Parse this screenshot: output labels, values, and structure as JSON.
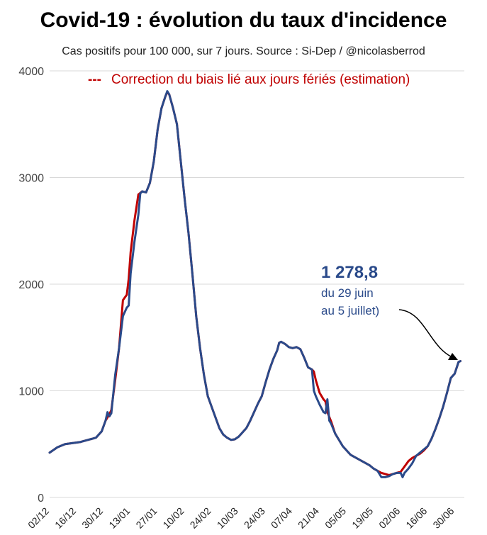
{
  "chart_data": {
    "type": "line",
    "title": "Covid-19 : évolution du taux d'incidence",
    "subtitle": "Cas positifs pour 100 000, sur 7 jours. Source : Si-Dep  / @nicolasberrod",
    "ylim": [
      0,
      4000
    ],
    "yticks": [
      0,
      1000,
      2000,
      3000,
      4000
    ],
    "xticks": [
      "02/12",
      "16/12",
      "30/12",
      "13/01",
      "27/01",
      "10/02",
      "24/02",
      "10/03",
      "24/03",
      "07/04",
      "21/04",
      "05/05",
      "19/05",
      "02/06",
      "16/06",
      "30/06"
    ],
    "x_start": "02/12",
    "x_end": "05/07",
    "legend": [
      {
        "marker": "---",
        "label": "Correction du biais lié aux jours fériés (estimation)",
        "color": "#c00000"
      }
    ],
    "annotation": {
      "value": "1 278,8",
      "line1": "du 29 juin",
      "line2": "au 5 juillet)"
    },
    "series": [
      {
        "role": "corrected",
        "color": "#c00000",
        "points": [
          [
            0,
            420
          ],
          [
            4,
            470
          ],
          [
            8,
            500
          ],
          [
            12,
            510
          ],
          [
            16,
            520
          ],
          [
            20,
            540
          ],
          [
            24,
            560
          ],
          [
            27,
            620
          ],
          [
            29,
            720
          ],
          [
            31,
            780
          ],
          [
            32,
            820
          ],
          [
            34,
            1100
          ],
          [
            36,
            1400
          ],
          [
            38,
            1850
          ],
          [
            40,
            1900
          ],
          [
            41,
            2050
          ],
          [
            42,
            2300
          ],
          [
            44,
            2600
          ],
          [
            46,
            2840
          ],
          [
            48,
            2870
          ],
          [
            50,
            2860
          ],
          [
            52,
            2950
          ],
          [
            54,
            3150
          ],
          [
            56,
            3450
          ],
          [
            58,
            3650
          ],
          [
            60,
            3760
          ],
          [
            61,
            3800
          ],
          [
            62,
            3780
          ],
          [
            64,
            3650
          ],
          [
            66,
            3500
          ],
          [
            68,
            3150
          ],
          [
            70,
            2800
          ],
          [
            72,
            2480
          ],
          [
            74,
            2100
          ],
          [
            76,
            1700
          ],
          [
            78,
            1400
          ],
          [
            80,
            1150
          ],
          [
            82,
            950
          ],
          [
            84,
            850
          ],
          [
            86,
            750
          ],
          [
            88,
            650
          ],
          [
            90,
            590
          ],
          [
            92,
            560
          ],
          [
            94,
            540
          ],
          [
            96,
            545
          ],
          [
            98,
            570
          ],
          [
            100,
            610
          ],
          [
            102,
            650
          ],
          [
            104,
            720
          ],
          [
            106,
            800
          ],
          [
            108,
            880
          ],
          [
            110,
            950
          ],
          [
            112,
            1080
          ],
          [
            114,
            1200
          ],
          [
            116,
            1300
          ],
          [
            118,
            1380
          ],
          [
            119,
            1450
          ],
          [
            120,
            1460
          ],
          [
            122,
            1440
          ],
          [
            124,
            1410
          ],
          [
            126,
            1400
          ],
          [
            128,
            1410
          ],
          [
            130,
            1390
          ],
          [
            132,
            1310
          ],
          [
            134,
            1220
          ],
          [
            136,
            1200
          ],
          [
            137,
            1180
          ],
          [
            138,
            1100
          ],
          [
            140,
            980
          ],
          [
            142,
            920
          ],
          [
            143,
            900
          ],
          [
            144,
            800
          ],
          [
            146,
            710
          ],
          [
            148,
            600
          ],
          [
            150,
            540
          ],
          [
            152,
            480
          ],
          [
            154,
            440
          ],
          [
            156,
            400
          ],
          [
            158,
            380
          ],
          [
            160,
            360
          ],
          [
            162,
            340
          ],
          [
            164,
            320
          ],
          [
            166,
            300
          ],
          [
            168,
            270
          ],
          [
            170,
            250
          ],
          [
            172,
            230
          ],
          [
            174,
            220
          ],
          [
            176,
            210
          ],
          [
            178,
            220
          ],
          [
            180,
            230
          ],
          [
            182,
            240
          ],
          [
            184,
            290
          ],
          [
            186,
            340
          ],
          [
            188,
            370
          ],
          [
            190,
            390
          ],
          [
            192,
            410
          ],
          [
            194,
            440
          ],
          [
            196,
            480
          ],
          [
            198,
            550
          ],
          [
            200,
            640
          ],
          [
            202,
            740
          ],
          [
            204,
            850
          ],
          [
            206,
            980
          ],
          [
            208,
            1120
          ],
          [
            210,
            1160
          ],
          [
            212,
            1270
          ],
          [
            213,
            1278.8
          ]
        ]
      },
      {
        "role": "raw",
        "color": "#2a4a8a",
        "points": [
          [
            0,
            420
          ],
          [
            4,
            470
          ],
          [
            8,
            500
          ],
          [
            12,
            510
          ],
          [
            16,
            520
          ],
          [
            20,
            540
          ],
          [
            24,
            560
          ],
          [
            27,
            620
          ],
          [
            29,
            720
          ],
          [
            30,
            800
          ],
          [
            31,
            760
          ],
          [
            32,
            790
          ],
          [
            34,
            1150
          ],
          [
            36,
            1400
          ],
          [
            38,
            1700
          ],
          [
            40,
            1780
          ],
          [
            41,
            1800
          ],
          [
            42,
            2100
          ],
          [
            44,
            2400
          ],
          [
            46,
            2650
          ],
          [
            47,
            2850
          ],
          [
            48,
            2870
          ],
          [
            50,
            2860
          ],
          [
            52,
            2950
          ],
          [
            54,
            3150
          ],
          [
            56,
            3450
          ],
          [
            58,
            3650
          ],
          [
            60,
            3760
          ],
          [
            61,
            3810
          ],
          [
            62,
            3780
          ],
          [
            64,
            3650
          ],
          [
            66,
            3500
          ],
          [
            68,
            3150
          ],
          [
            70,
            2800
          ],
          [
            72,
            2480
          ],
          [
            74,
            2100
          ],
          [
            76,
            1700
          ],
          [
            78,
            1400
          ],
          [
            80,
            1150
          ],
          [
            82,
            950
          ],
          [
            84,
            850
          ],
          [
            86,
            750
          ],
          [
            88,
            650
          ],
          [
            90,
            590
          ],
          [
            92,
            560
          ],
          [
            94,
            540
          ],
          [
            96,
            545
          ],
          [
            98,
            570
          ],
          [
            100,
            610
          ],
          [
            102,
            650
          ],
          [
            104,
            720
          ],
          [
            106,
            800
          ],
          [
            108,
            880
          ],
          [
            110,
            950
          ],
          [
            112,
            1080
          ],
          [
            114,
            1200
          ],
          [
            116,
            1300
          ],
          [
            118,
            1380
          ],
          [
            119,
            1450
          ],
          [
            120,
            1460
          ],
          [
            122,
            1440
          ],
          [
            124,
            1410
          ],
          [
            126,
            1400
          ],
          [
            128,
            1410
          ],
          [
            130,
            1390
          ],
          [
            132,
            1310
          ],
          [
            134,
            1220
          ],
          [
            136,
            1200
          ],
          [
            137,
            1000
          ],
          [
            138,
            950
          ],
          [
            140,
            870
          ],
          [
            142,
            800
          ],
          [
            143,
            790
          ],
          [
            144,
            920
          ],
          [
            145,
            720
          ],
          [
            146,
            690
          ],
          [
            148,
            600
          ],
          [
            150,
            540
          ],
          [
            152,
            480
          ],
          [
            154,
            440
          ],
          [
            156,
            400
          ],
          [
            158,
            380
          ],
          [
            160,
            360
          ],
          [
            162,
            340
          ],
          [
            164,
            320
          ],
          [
            166,
            300
          ],
          [
            168,
            270
          ],
          [
            170,
            250
          ],
          [
            172,
            190
          ],
          [
            174,
            190
          ],
          [
            176,
            200
          ],
          [
            178,
            220
          ],
          [
            180,
            230
          ],
          [
            182,
            230
          ],
          [
            183,
            190
          ],
          [
            184,
            230
          ],
          [
            186,
            270
          ],
          [
            188,
            320
          ],
          [
            190,
            390
          ],
          [
            192,
            420
          ],
          [
            194,
            450
          ],
          [
            196,
            480
          ],
          [
            198,
            550
          ],
          [
            200,
            640
          ],
          [
            202,
            740
          ],
          [
            204,
            850
          ],
          [
            206,
            980
          ],
          [
            208,
            1120
          ],
          [
            210,
            1160
          ],
          [
            212,
            1270
          ],
          [
            213,
            1278.8
          ]
        ]
      }
    ]
  }
}
